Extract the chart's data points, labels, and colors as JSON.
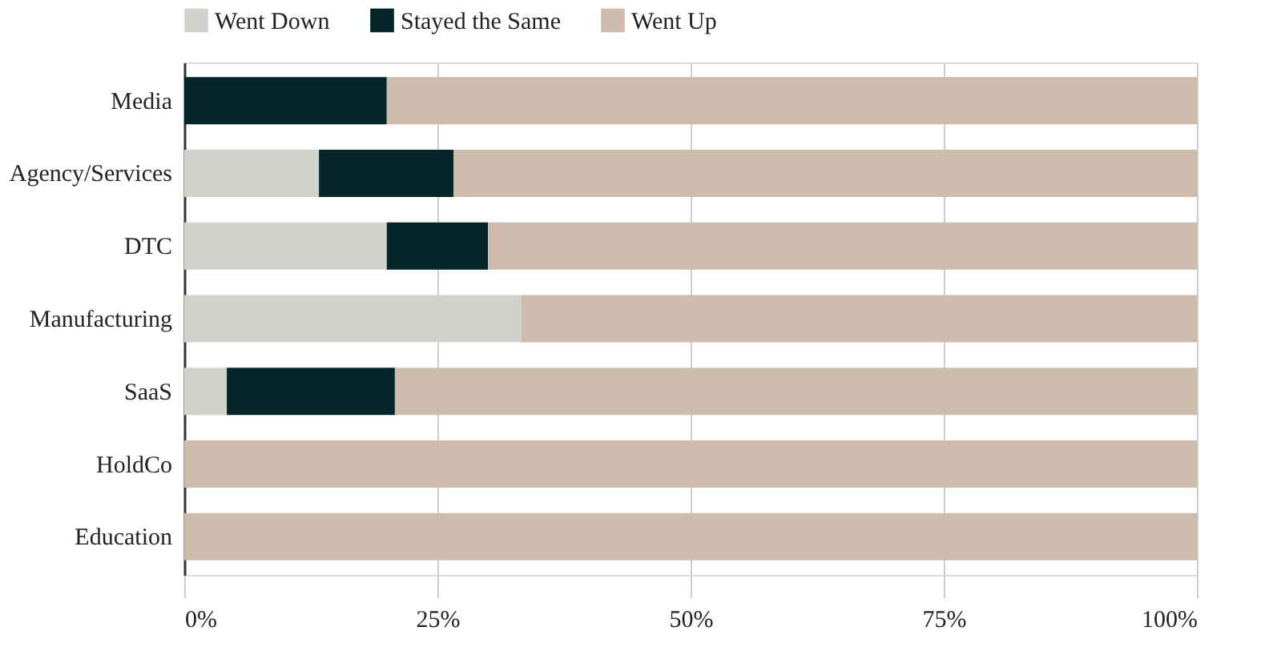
{
  "chart_data": {
    "type": "bar",
    "orientation": "horizontal",
    "stacked": true,
    "categories": [
      "Media",
      "Agency/Services",
      "DTC",
      "Manufacturing",
      "SaaS",
      "HoldCo",
      "Education"
    ],
    "series": [
      {
        "name": "Went Down",
        "color": "#d0d3cc",
        "values": [
          0,
          13.3,
          20,
          33.3,
          4.2,
          0,
          0
        ]
      },
      {
        "name": "Stayed the Same",
        "color": "#04252a",
        "values": [
          20,
          13.3,
          10,
          0,
          16.6,
          0,
          0
        ]
      },
      {
        "name": "Went Up",
        "color": "#cdbcab",
        "values": [
          80,
          73.4,
          70,
          66.7,
          79.2,
          100,
          100
        ]
      }
    ],
    "xlim": [
      0,
      100
    ],
    "xticks": [
      {
        "value": 0,
        "label": "0%"
      },
      {
        "value": 25,
        "label": "25%"
      },
      {
        "value": 50,
        "label": "50%"
      },
      {
        "value": 75,
        "label": "75%"
      },
      {
        "value": 100,
        "label": "100%"
      }
    ],
    "grid": "x",
    "legend": "top"
  }
}
